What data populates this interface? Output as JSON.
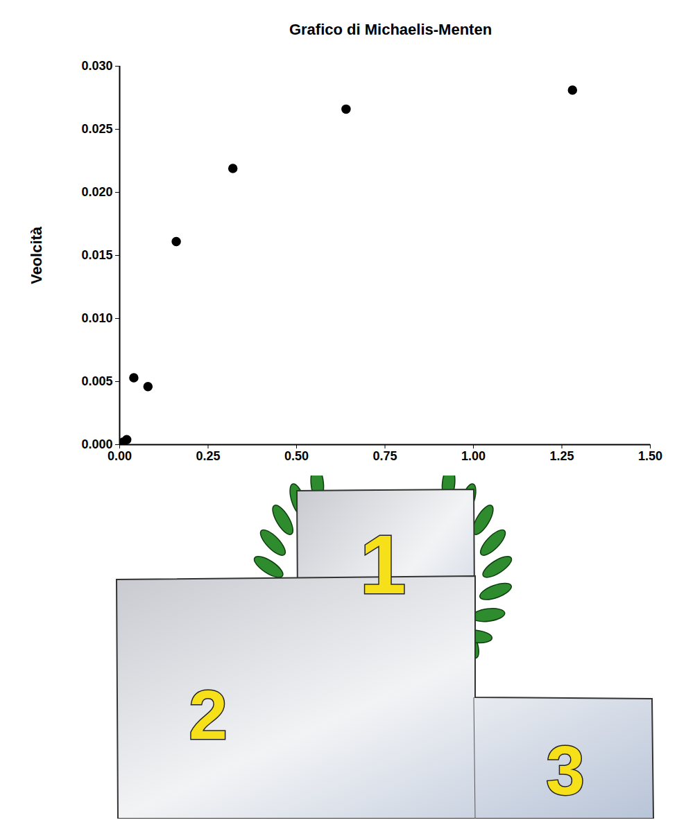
{
  "chart_data": {
    "type": "scatter",
    "title": "Grafico di Michaelis-Menten",
    "y_label": "Veolcità",
    "x": [
      0.0,
      0.01,
      0.02,
      0.04,
      0.08,
      0.16,
      0.32,
      0.64,
      1.28
    ],
    "values": [
      0.0,
      0.0002,
      0.0004,
      0.0053,
      0.0046,
      0.0161,
      0.0219,
      0.0266,
      0.0281
    ],
    "color": "#000000",
    "marker": "circle",
    "xlim": [
      0,
      1.5
    ],
    "xticks": [
      {
        "value": 0,
        "label": "0.00"
      },
      {
        "value": 0.25,
        "label": "0.25"
      },
      {
        "value": 0.5,
        "label": "0.50"
      },
      {
        "value": 0.75,
        "label": "0.75"
      },
      {
        "value": 1.0,
        "label": "1.00"
      },
      {
        "value": 1.25,
        "label": "1.25"
      },
      {
        "value": 1.5,
        "label": "1.50"
      }
    ],
    "ylim": [
      0,
      0.03
    ],
    "yticks": [
      {
        "value": 0,
        "label": "0.000"
      },
      {
        "value": 0.005,
        "label": "0.005"
      },
      {
        "value": 0.01,
        "label": "0.010"
      },
      {
        "value": 0.015,
        "label": "0.015"
      },
      {
        "value": 0.02,
        "label": "0.020"
      },
      {
        "value": 0.025,
        "label": "0.025"
      },
      {
        "value": 0.03,
        "label": "0.030"
      }
    ],
    "grid": false,
    "annotations": [
      "1",
      "2",
      "3"
    ]
  }
}
